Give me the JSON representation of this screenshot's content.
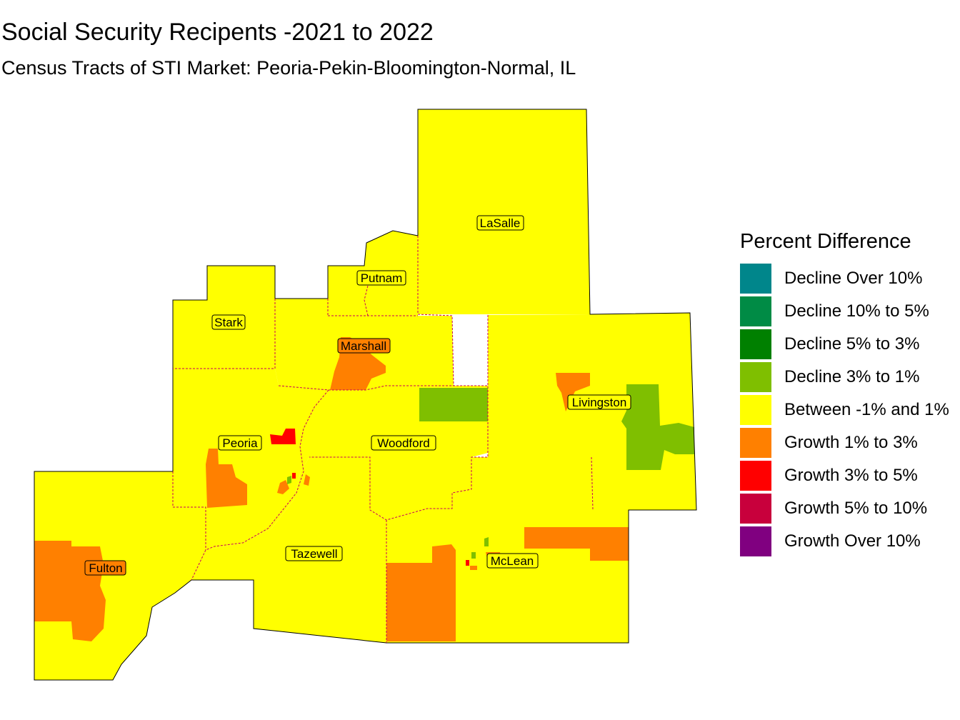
{
  "title": "Social Security Recipents -2021 to 2022",
  "subtitle": "Census Tracts of STI Market: Peoria-Pekin-Bloomington-Normal, IL",
  "legend": {
    "title": "Percent Difference",
    "items": [
      {
        "label": "Decline Over 10%",
        "color": "#00868B"
      },
      {
        "label": "Decline 10% to 5%",
        "color": "#008B45"
      },
      {
        "label": "Decline 5% to 3%",
        "color": "#008000"
      },
      {
        "label": "Decline 3% to 1%",
        "color": "#7FBF00"
      },
      {
        "label": "Between -1% and 1%",
        "color": "#FFFF00"
      },
      {
        "label": "Growth 1% to 3%",
        "color": "#FF8000"
      },
      {
        "label": "Growth 3% to 5%",
        "color": "#FF0000"
      },
      {
        "label": "Growth 5% to 10%",
        "color": "#C8003C"
      },
      {
        "label": "Growth Over 10%",
        "color": "#800080"
      }
    ]
  },
  "counties": [
    {
      "name": "LaSalle"
    },
    {
      "name": "Putnam"
    },
    {
      "name": "Stark"
    },
    {
      "name": "Marshall"
    },
    {
      "name": "Livingston"
    },
    {
      "name": "Peoria"
    },
    {
      "name": "Woodford"
    },
    {
      "name": "Tazewell"
    },
    {
      "name": "Fulton"
    },
    {
      "name": "McLean"
    }
  ]
}
